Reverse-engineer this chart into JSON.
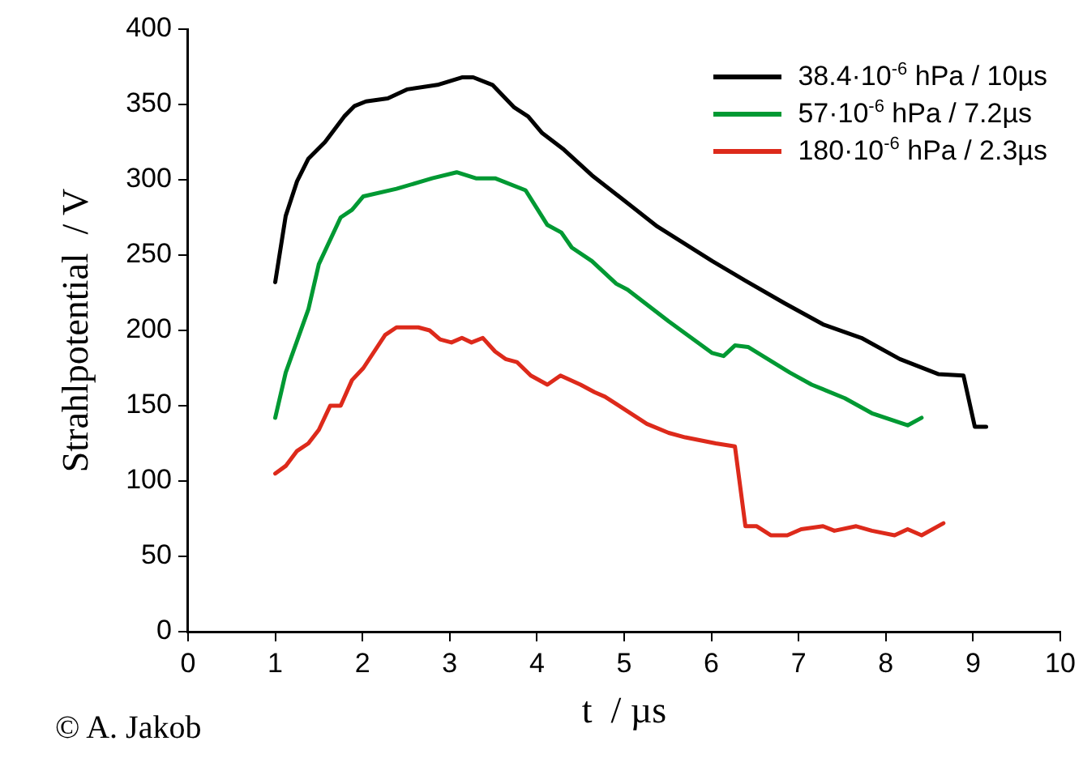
{
  "chart_data": {
    "type": "line",
    "xlabel": "t  / µs",
    "ylabel": "Strahlpotential  / V",
    "xlim": [
      0,
      10
    ],
    "xticks": [
      0,
      1,
      2,
      3,
      4,
      5,
      6,
      7,
      8,
      9,
      10
    ],
    "ylim": [
      0,
      400
    ],
    "yticks": [
      0,
      50,
      100,
      150,
      200,
      250,
      300,
      350,
      400
    ],
    "grid": false,
    "legend": "top right",
    "marker": "none",
    "line_style": "solid",
    "annotations": [
      "© A. Jakob"
    ],
    "series": [
      {
        "name": "38.4·10$^{-6}$ hPa / 10µs",
        "color": "#000000",
        "x": [
          1.0,
          1.12,
          1.25,
          1.38,
          1.57,
          1.79,
          1.91,
          2.04,
          2.29,
          2.51,
          2.86,
          3.14,
          3.27,
          3.49,
          3.74,
          3.9,
          4.06,
          4.31,
          4.63,
          4.94,
          5.38,
          6.01,
          6.39,
          6.84,
          7.28,
          7.72,
          8.16,
          8.6,
          8.89,
          9.02,
          9.15
        ],
        "values": [
          232,
          276,
          299,
          314,
          325,
          342,
          349,
          352,
          354,
          360,
          363,
          368,
          368,
          363,
          348,
          342,
          331,
          320,
          303,
          289,
          269,
          246,
          233,
          218,
          204,
          195,
          181,
          171,
          170,
          136,
          136
        ]
      },
      {
        "name": "57·10$^{-6}$ hPa / 7.2µs",
        "color": "#009933",
        "x": [
          1.0,
          1.12,
          1.38,
          1.5,
          1.75,
          1.88,
          2.01,
          2.39,
          2.8,
          3.08,
          3.3,
          3.52,
          3.87,
          4.12,
          4.28,
          4.4,
          4.63,
          4.91,
          5.04,
          5.51,
          6.01,
          6.14,
          6.27,
          6.42,
          6.9,
          7.15,
          7.53,
          7.84,
          8.25,
          8.41
        ],
        "values": [
          142,
          172,
          214,
          244,
          275,
          280,
          289,
          294,
          301,
          305,
          301,
          301,
          293,
          270,
          265,
          255,
          246,
          231,
          227,
          206,
          185,
          183,
          190,
          189,
          172,
          164,
          155,
          145,
          137,
          142
        ]
      },
      {
        "name": "180·10$^{-6}$ hPa / 2.3µs",
        "color": "#dd2a1b",
        "x": [
          1.0,
          1.12,
          1.25,
          1.38,
          1.5,
          1.63,
          1.75,
          1.88,
          2.01,
          2.26,
          2.39,
          2.64,
          2.77,
          2.89,
          3.02,
          3.14,
          3.25,
          3.38,
          3.52,
          3.64,
          3.77,
          3.93,
          4.12,
          4.27,
          4.5,
          4.66,
          4.78,
          5.26,
          5.51,
          5.7,
          6.05,
          6.27,
          6.39,
          6.52,
          6.68,
          6.87,
          7.03,
          7.28,
          7.41,
          7.66,
          7.84,
          8.1,
          8.25,
          8.41,
          8.66
        ],
        "values": [
          105,
          110,
          120,
          125,
          134,
          150,
          150,
          167,
          175,
          197,
          202,
          202,
          200,
          194,
          192,
          195,
          192,
          195,
          186,
          181,
          179,
          170,
          164,
          170,
          164,
          159,
          156,
          138,
          132,
          129,
          125,
          123,
          70,
          70,
          64,
          64,
          68,
          70,
          67,
          70,
          67,
          64,
          68,
          64,
          72
        ]
      }
    ]
  }
}
